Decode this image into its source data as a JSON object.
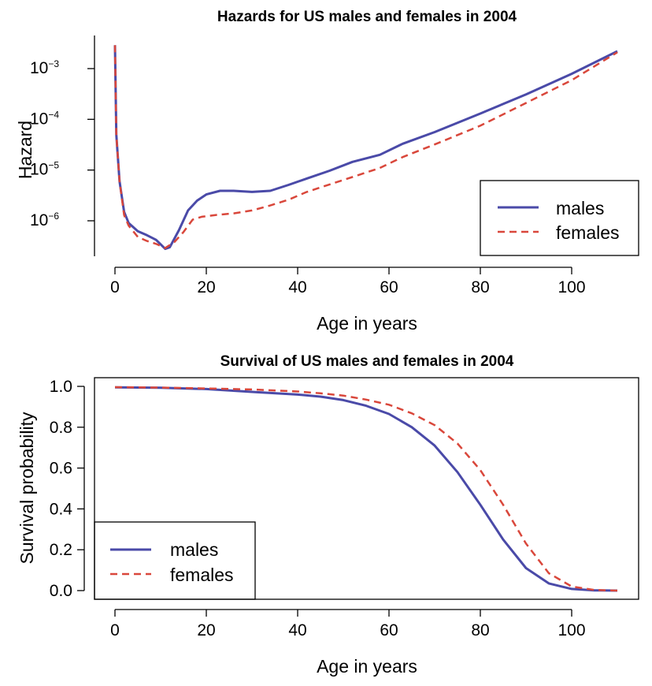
{
  "chart_data": [
    {
      "type": "line",
      "title": "Hazards for US males and females in 2004",
      "xlabel": "Age in years",
      "ylabel": "Hazard",
      "y_scale": "log",
      "xlim": [
        0,
        110
      ],
      "ylim": [
        2.5e-07,
        0.003
      ],
      "x_ticks": [
        "0",
        "20",
        "40",
        "60",
        "80",
        "100"
      ],
      "y_ticks": [
        {
          "base": "10",
          "exp": "−3",
          "value": 0.001
        },
        {
          "base": "10",
          "exp": "−4",
          "value": 0.0001
        },
        {
          "base": "10",
          "exp": "−5",
          "value": 1e-05
        },
        {
          "base": "10",
          "exp": "−6",
          "value": 1e-06
        }
      ],
      "frame": "axes only",
      "legend_position": "bottom-right",
      "legend": [
        "males",
        "females"
      ],
      "series": [
        {
          "name": "males",
          "color": "#4a4aa8",
          "dash": "solid",
          "points": [
            [
              0,
              0.0029
            ],
            [
              0.3,
              5e-05
            ],
            [
              1,
              6e-06
            ],
            [
              2,
              1.5e-06
            ],
            [
              3,
              9e-07
            ],
            [
              5,
              6.2e-07
            ],
            [
              7,
              5.2e-07
            ],
            [
              9,
              4.2e-07
            ],
            [
              11,
              2.8e-07
            ],
            [
              12,
              3e-07
            ],
            [
              14,
              6.5e-07
            ],
            [
              16,
              1.6e-06
            ],
            [
              18,
              2.5e-06
            ],
            [
              20,
              3.3e-06
            ],
            [
              23,
              3.9e-06
            ],
            [
              26,
              3.9e-06
            ],
            [
              30,
              3.7e-06
            ],
            [
              34,
              3.9e-06
            ],
            [
              38,
              5.1e-06
            ],
            [
              42,
              6.8e-06
            ],
            [
              47,
              9.7e-06
            ],
            [
              52,
              1.45e-05
            ],
            [
              58,
              2e-05
            ],
            [
              63,
              3.3e-05
            ],
            [
              70,
              5.6e-05
            ],
            [
              80,
              0.00013
            ],
            [
              90,
              0.00031
            ],
            [
              100,
              0.00079
            ],
            [
              110,
              0.0022
            ]
          ]
        },
        {
          "name": "females",
          "color": "#d9473b",
          "dash": "dashed",
          "points": [
            [
              0,
              0.0029
            ],
            [
              0.3,
              5e-05
            ],
            [
              1,
              6e-06
            ],
            [
              2,
              1.3e-06
            ],
            [
              3,
              8e-07
            ],
            [
              5,
              4.8e-07
            ],
            [
              7,
              4e-07
            ],
            [
              9,
              3.5e-07
            ],
            [
              11,
              2.9e-07
            ],
            [
              13,
              3.8e-07
            ],
            [
              15,
              6e-07
            ],
            [
              17,
              1.05e-06
            ],
            [
              19,
              1.2e-06
            ],
            [
              22,
              1.3e-06
            ],
            [
              26,
              1.4e-06
            ],
            [
              30,
              1.6e-06
            ],
            [
              34,
              2e-06
            ],
            [
              38,
              2.6e-06
            ],
            [
              42,
              3.7e-06
            ],
            [
              47,
              5.2e-06
            ],
            [
              52,
              7.3e-06
            ],
            [
              58,
              1.1e-05
            ],
            [
              63,
              1.8e-05
            ],
            [
              70,
              3.2e-05
            ],
            [
              80,
              7.5e-05
            ],
            [
              90,
              0.00021
            ],
            [
              100,
              0.00059
            ],
            [
              110,
              0.0021
            ]
          ]
        }
      ]
    },
    {
      "type": "line",
      "title": "Survival of US males and females in 2004",
      "xlabel": "Age in years",
      "ylabel": "Survival probability",
      "xlim": [
        0,
        110
      ],
      "ylim": [
        0,
        1
      ],
      "x_ticks": [
        "0",
        "20",
        "40",
        "60",
        "80",
        "100"
      ],
      "y_ticks": [
        "0.0",
        "0.2",
        "0.4",
        "0.6",
        "0.8",
        "1.0"
      ],
      "frame": "box",
      "legend_position": "bottom-left",
      "legend": [
        "males",
        "females"
      ],
      "series": [
        {
          "name": "males",
          "color": "#4a4aa8",
          "dash": "solid",
          "points": [
            [
              0,
              0.995
            ],
            [
              10,
              0.993
            ],
            [
              20,
              0.987
            ],
            [
              30,
              0.973
            ],
            [
              40,
              0.96
            ],
            [
              45,
              0.95
            ],
            [
              50,
              0.933
            ],
            [
              55,
              0.905
            ],
            [
              60,
              0.865
            ],
            [
              65,
              0.8
            ],
            [
              70,
              0.71
            ],
            [
              75,
              0.58
            ],
            [
              80,
              0.42
            ],
            [
              85,
              0.25
            ],
            [
              90,
              0.11
            ],
            [
              95,
              0.035
            ],
            [
              100,
              0.008
            ],
            [
              105,
              0.001
            ],
            [
              110,
              0
            ]
          ]
        },
        {
          "name": "females",
          "color": "#d9473b",
          "dash": "dashed",
          "points": [
            [
              0,
              0.996
            ],
            [
              10,
              0.994
            ],
            [
              20,
              0.99
            ],
            [
              30,
              0.985
            ],
            [
              40,
              0.975
            ],
            [
              45,
              0.966
            ],
            [
              50,
              0.955
            ],
            [
              55,
              0.935
            ],
            [
              60,
              0.91
            ],
            [
              65,
              0.868
            ],
            [
              70,
              0.81
            ],
            [
              75,
              0.72
            ],
            [
              80,
              0.59
            ],
            [
              85,
              0.42
            ],
            [
              90,
              0.23
            ],
            [
              95,
              0.085
            ],
            [
              100,
              0.02
            ],
            [
              105,
              0.003
            ],
            [
              110,
              0
            ]
          ]
        }
      ]
    }
  ]
}
